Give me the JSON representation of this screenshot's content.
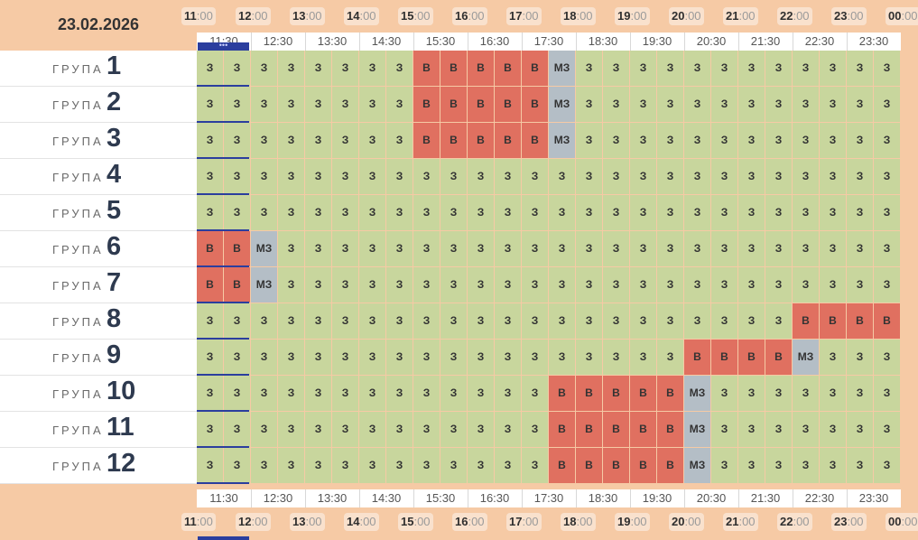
{
  "header": {
    "date": "23.02.2026"
  },
  "hours": [
    {
      "hh": "11",
      "mm": ":00"
    },
    {
      "hh": "12",
      "mm": ":00"
    },
    {
      "hh": "13",
      "mm": ":00"
    },
    {
      "hh": "14",
      "mm": ":00"
    },
    {
      "hh": "15",
      "mm": ":00"
    },
    {
      "hh": "16",
      "mm": ":00"
    },
    {
      "hh": "17",
      "mm": ":00"
    },
    {
      "hh": "18",
      "mm": ":00"
    },
    {
      "hh": "19",
      "mm": ":00"
    },
    {
      "hh": "20",
      "mm": ":00"
    },
    {
      "hh": "21",
      "mm": ":00"
    },
    {
      "hh": "22",
      "mm": ":00"
    },
    {
      "hh": "23",
      "mm": ":00"
    },
    {
      "hh": "00",
      "mm": ":00"
    }
  ],
  "half_hours": [
    "11:30",
    "12:30",
    "13:30",
    "14:30",
    "15:30",
    "16:30",
    "17:30",
    "18:30",
    "19:30",
    "20:30",
    "21:30",
    "22:30",
    "23:30"
  ],
  "now_marker": "•••",
  "group_word": "ГРУПА",
  "status_text": {
    "z": "З",
    "v": "В",
    "mz": "МЗ"
  },
  "colors": {
    "z": "#c8d69d",
    "v": "#e07060",
    "mz": "#b4bec6",
    "header_bg": "#f6caa5",
    "current": "#2b3e9e"
  },
  "groups": [
    {
      "number": "1",
      "slots": [
        "z",
        "z",
        "z",
        "z",
        "z",
        "z",
        "z",
        "z",
        "v",
        "v",
        "v",
        "v",
        "v",
        "mz",
        "z",
        "z",
        "z",
        "z",
        "z",
        "z",
        "z",
        "z",
        "z",
        "z",
        "z",
        "z"
      ]
    },
    {
      "number": "2",
      "slots": [
        "z",
        "z",
        "z",
        "z",
        "z",
        "z",
        "z",
        "z",
        "v",
        "v",
        "v",
        "v",
        "v",
        "mz",
        "z",
        "z",
        "z",
        "z",
        "z",
        "z",
        "z",
        "z",
        "z",
        "z",
        "z",
        "z"
      ]
    },
    {
      "number": "3",
      "slots": [
        "z",
        "z",
        "z",
        "z",
        "z",
        "z",
        "z",
        "z",
        "v",
        "v",
        "v",
        "v",
        "v",
        "mz",
        "z",
        "z",
        "z",
        "z",
        "z",
        "z",
        "z",
        "z",
        "z",
        "z",
        "z",
        "z"
      ]
    },
    {
      "number": "4",
      "slots": [
        "z",
        "z",
        "z",
        "z",
        "z",
        "z",
        "z",
        "z",
        "z",
        "z",
        "z",
        "z",
        "z",
        "z",
        "z",
        "z",
        "z",
        "z",
        "z",
        "z",
        "z",
        "z",
        "z",
        "z",
        "z",
        "z"
      ]
    },
    {
      "number": "5",
      "slots": [
        "z",
        "z",
        "z",
        "z",
        "z",
        "z",
        "z",
        "z",
        "z",
        "z",
        "z",
        "z",
        "z",
        "z",
        "z",
        "z",
        "z",
        "z",
        "z",
        "z",
        "z",
        "z",
        "z",
        "z",
        "z",
        "z"
      ]
    },
    {
      "number": "6",
      "slots": [
        "v",
        "v",
        "mz",
        "z",
        "z",
        "z",
        "z",
        "z",
        "z",
        "z",
        "z",
        "z",
        "z",
        "z",
        "z",
        "z",
        "z",
        "z",
        "z",
        "z",
        "z",
        "z",
        "z",
        "z",
        "z",
        "z"
      ]
    },
    {
      "number": "7",
      "slots": [
        "v",
        "v",
        "mz",
        "z",
        "z",
        "z",
        "z",
        "z",
        "z",
        "z",
        "z",
        "z",
        "z",
        "z",
        "z",
        "z",
        "z",
        "z",
        "z",
        "z",
        "z",
        "z",
        "z",
        "z",
        "z",
        "z"
      ]
    },
    {
      "number": "8",
      "slots": [
        "z",
        "z",
        "z",
        "z",
        "z",
        "z",
        "z",
        "z",
        "z",
        "z",
        "z",
        "z",
        "z",
        "z",
        "z",
        "z",
        "z",
        "z",
        "z",
        "z",
        "z",
        "z",
        "v",
        "v",
        "v",
        "v"
      ]
    },
    {
      "number": "9",
      "slots": [
        "z",
        "z",
        "z",
        "z",
        "z",
        "z",
        "z",
        "z",
        "z",
        "z",
        "z",
        "z",
        "z",
        "z",
        "z",
        "z",
        "z",
        "z",
        "v",
        "v",
        "v",
        "v",
        "mz",
        "z",
        "z",
        "z"
      ]
    },
    {
      "number": "10",
      "slots": [
        "z",
        "z",
        "z",
        "z",
        "z",
        "z",
        "z",
        "z",
        "z",
        "z",
        "z",
        "z",
        "z",
        "v",
        "v",
        "v",
        "v",
        "v",
        "mz",
        "z",
        "z",
        "z",
        "z",
        "z",
        "z",
        "z"
      ]
    },
    {
      "number": "11",
      "slots": [
        "z",
        "z",
        "z",
        "z",
        "z",
        "z",
        "z",
        "z",
        "z",
        "z",
        "z",
        "z",
        "z",
        "v",
        "v",
        "v",
        "v",
        "v",
        "mz",
        "z",
        "z",
        "z",
        "z",
        "z",
        "z",
        "z"
      ]
    },
    {
      "number": "12",
      "slots": [
        "z",
        "z",
        "z",
        "z",
        "z",
        "z",
        "z",
        "z",
        "z",
        "z",
        "z",
        "z",
        "z",
        "v",
        "v",
        "v",
        "v",
        "v",
        "mz",
        "z",
        "z",
        "z",
        "z",
        "z",
        "z",
        "z"
      ]
    }
  ]
}
